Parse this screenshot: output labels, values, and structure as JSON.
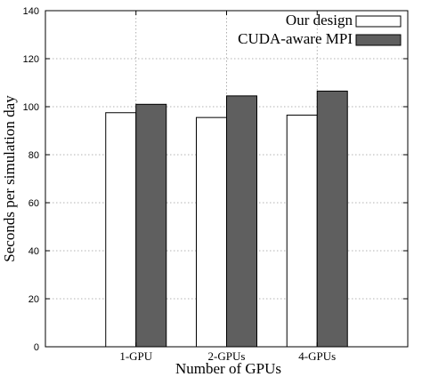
{
  "chart_data": {
    "type": "bar",
    "title": "",
    "xlabel": "Number of GPUs",
    "ylabel": "Seconds per simulation day",
    "categories": [
      "1-GPU",
      "2-GPUs",
      "4-GPUs"
    ],
    "ylim": [
      0,
      140
    ],
    "yticks": [
      "0",
      "20",
      "40",
      "60",
      "80",
      "100",
      "120",
      "140"
    ],
    "grid": true,
    "legend_position": "top-right",
    "series": [
      {
        "name": "Our design",
        "values": [
          97.5,
          95.5,
          96.5
        ],
        "color": "#ffffff"
      },
      {
        "name": "CUDA-aware MPI",
        "values": [
          101.0,
          104.5,
          106.5
        ],
        "color": "#5f5f5f"
      }
    ]
  }
}
